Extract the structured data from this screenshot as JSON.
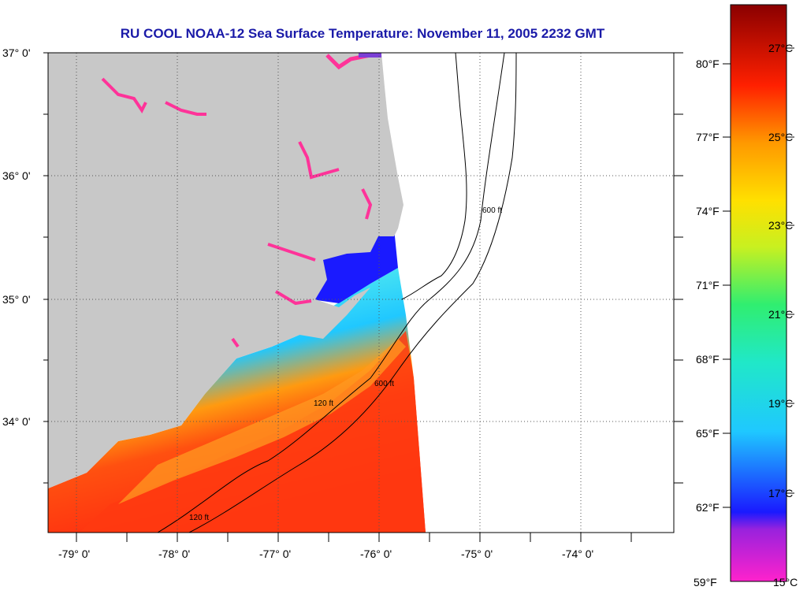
{
  "title": "RU COOL  NOAA-12  Sea Surface Temperature:  November 11, 2005 2232 GMT",
  "map": {
    "lat_labels": [
      "37° 0'",
      "36° 0'",
      "35° 0'",
      "34° 0'"
    ],
    "lon_labels": [
      "-79° 0'",
      "-78° 0'",
      "-77° 0'",
      "-76° 0'",
      "-75° 0'",
      "-74° 0'"
    ],
    "contour_labels": [
      "120 ft",
      "600 ft"
    ],
    "colors": {
      "land": "#c8c8c8",
      "ocean_nodata": "#ffffff",
      "grid": "#555555"
    }
  },
  "colorbar": {
    "fahrenheit_labels": [
      "80°F",
      "77°F",
      "74°F",
      "71°F",
      "68°F",
      "65°F",
      "62°F",
      "59°F"
    ],
    "celsius_labels": [
      "27°C",
      "25°C",
      "23°C",
      "21°C",
      "19°C",
      "17°C",
      "15°C"
    ]
  }
}
